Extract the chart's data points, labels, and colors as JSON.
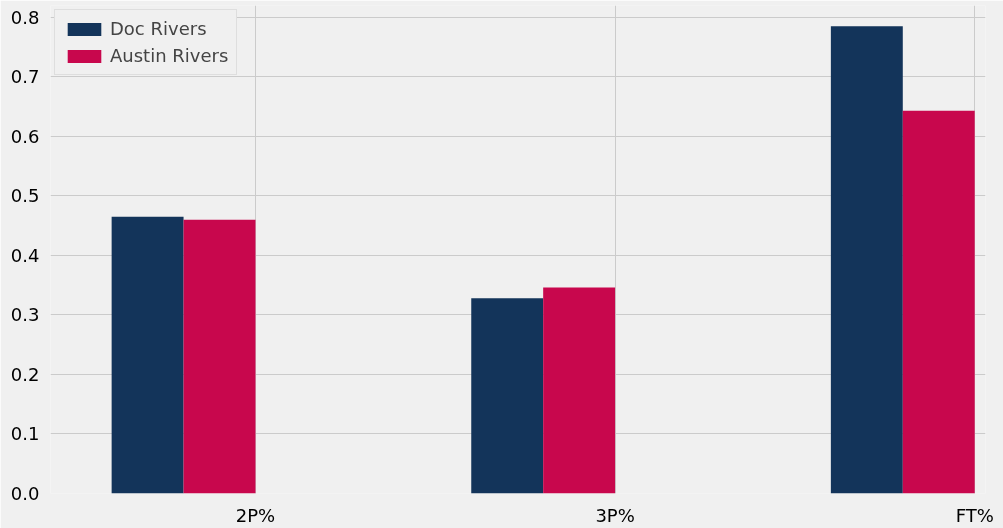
{
  "chart_data": {
    "type": "bar",
    "categories": [
      "2P%",
      "3P%",
      "FT%"
    ],
    "series": [
      {
        "name": "Doc Rivers",
        "color": "#13345a",
        "values": [
          0.465,
          0.328,
          0.785
        ]
      },
      {
        "name": "Austin Rivers",
        "color": "#c8074d",
        "values": [
          0.46,
          0.346,
          0.643
        ]
      }
    ],
    "ylim": [
      0,
      0.82
    ],
    "yticks": [
      {
        "value": 0,
        "label": "0.0"
      },
      0.1,
      0.2,
      0.3,
      0.4,
      0.5,
      0.6,
      0.7,
      0.8
    ],
    "grid": true,
    "legend": "top left"
  }
}
